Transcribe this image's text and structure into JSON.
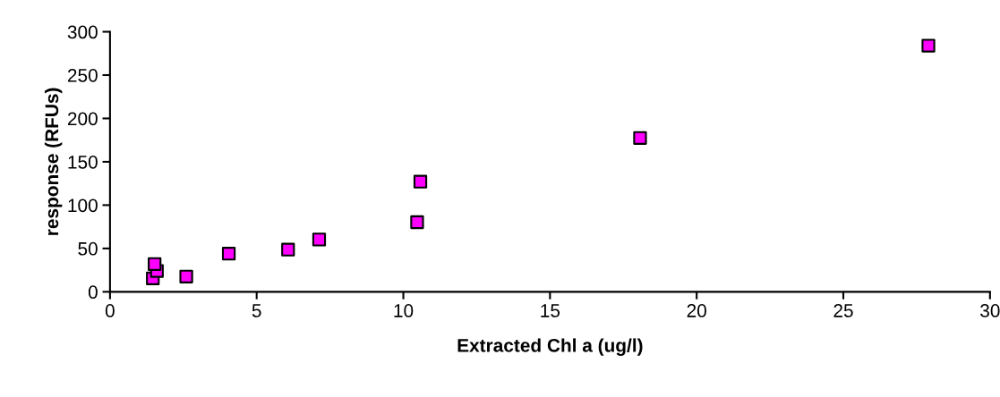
{
  "chart_data": {
    "type": "scatter",
    "xlabel": "Extracted Chl a (ug/l)",
    "ylabel": "response (RFUs)",
    "x": [
      1.46,
      1.6,
      1.52,
      2.6,
      4.05,
      6.07,
      7.13,
      10.47,
      10.58,
      18.07,
      27.9
    ],
    "series": [
      {
        "color": "#ff00ff",
        "values": [
          15.5,
          24,
          32,
          17.6,
          44,
          48.6,
          60.3,
          80.3,
          127,
          177.5,
          284
        ]
      }
    ],
    "marker": "square",
    "grid": false,
    "legend": false,
    "xlim": [
      0,
      30
    ],
    "xticks": [
      0,
      5,
      10,
      15,
      20,
      25,
      30
    ],
    "ylim": [
      0,
      300
    ],
    "yticks": [
      0,
      50,
      100,
      150,
      200,
      250,
      300
    ]
  }
}
